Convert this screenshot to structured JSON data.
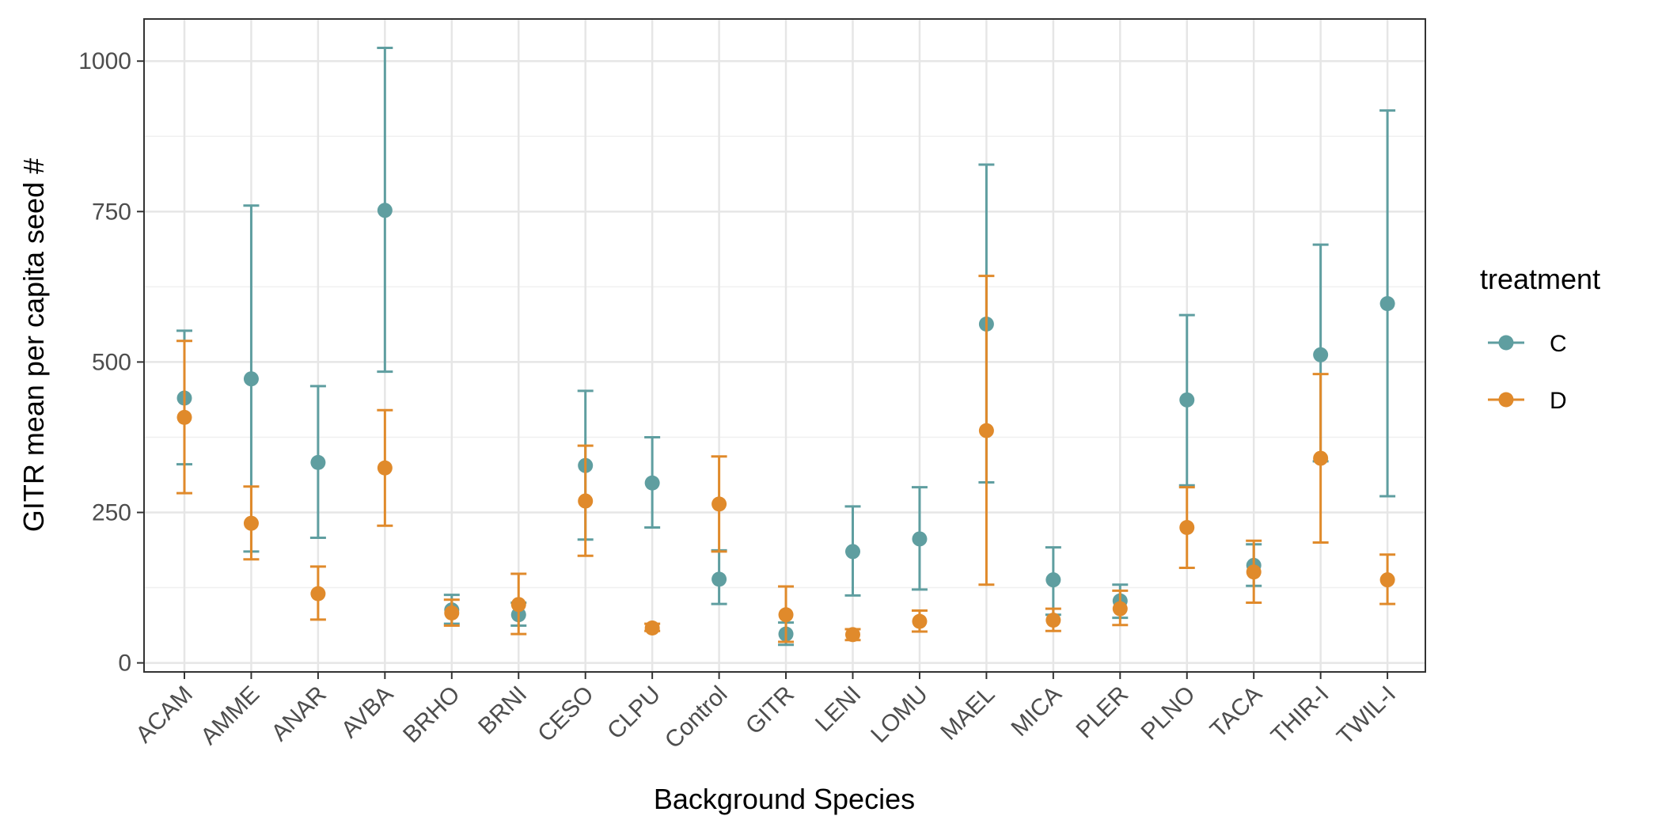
{
  "chart_data": {
    "type": "scatter",
    "title": "",
    "xlabel": "Background Species",
    "ylabel": "GITR mean per capita seed #",
    "ylim": [
      -15,
      1070
    ],
    "yticks": [
      0,
      250,
      500,
      750,
      1000
    ],
    "grid": true,
    "categories": [
      "ACAM",
      "AMME",
      "ANAR",
      "AVBA",
      "BRHO",
      "BRNI",
      "CESO",
      "CLPU",
      "Control",
      "GITR",
      "LENI",
      "LOMU",
      "MAEL",
      "MICA",
      "PLER",
      "PLNO",
      "TACA",
      "THIR-I",
      "TWIL-I"
    ],
    "series": [
      {
        "name": "C",
        "color": "#5f9ea0",
        "values": [
          440,
          472,
          333,
          752,
          88,
          80,
          328,
          299,
          139,
          48,
          185,
          206,
          563,
          138,
          103,
          437,
          162,
          512,
          597
        ],
        "lower": [
          330,
          185,
          208,
          484,
          65,
          62,
          205,
          225,
          98,
          30,
          112,
          122,
          300,
          80,
          75,
          295,
          128,
          335,
          277
        ],
        "upper": [
          552,
          760,
          460,
          1022,
          113,
          100,
          452,
          375,
          187,
          67,
          260,
          292,
          828,
          192,
          130,
          578,
          197,
          695,
          918
        ]
      },
      {
        "name": "D",
        "color": "#e08a2b",
        "values": [
          408,
          232,
          115,
          324,
          83,
          97,
          269,
          58,
          264,
          80,
          47,
          69,
          386,
          71,
          90,
          225,
          151,
          340,
          138
        ],
        "lower": [
          282,
          172,
          72,
          228,
          62,
          48,
          178,
          53,
          185,
          35,
          38,
          52,
          130,
          53,
          63,
          158,
          100,
          200,
          98
        ],
        "upper": [
          535,
          293,
          160,
          420,
          105,
          148,
          361,
          65,
          343,
          127,
          56,
          87,
          643,
          90,
          120,
          292,
          203,
          480,
          180
        ]
      }
    ],
    "legend": {
      "title": "treatment",
      "position": "right",
      "items": [
        "C",
        "D"
      ]
    }
  }
}
